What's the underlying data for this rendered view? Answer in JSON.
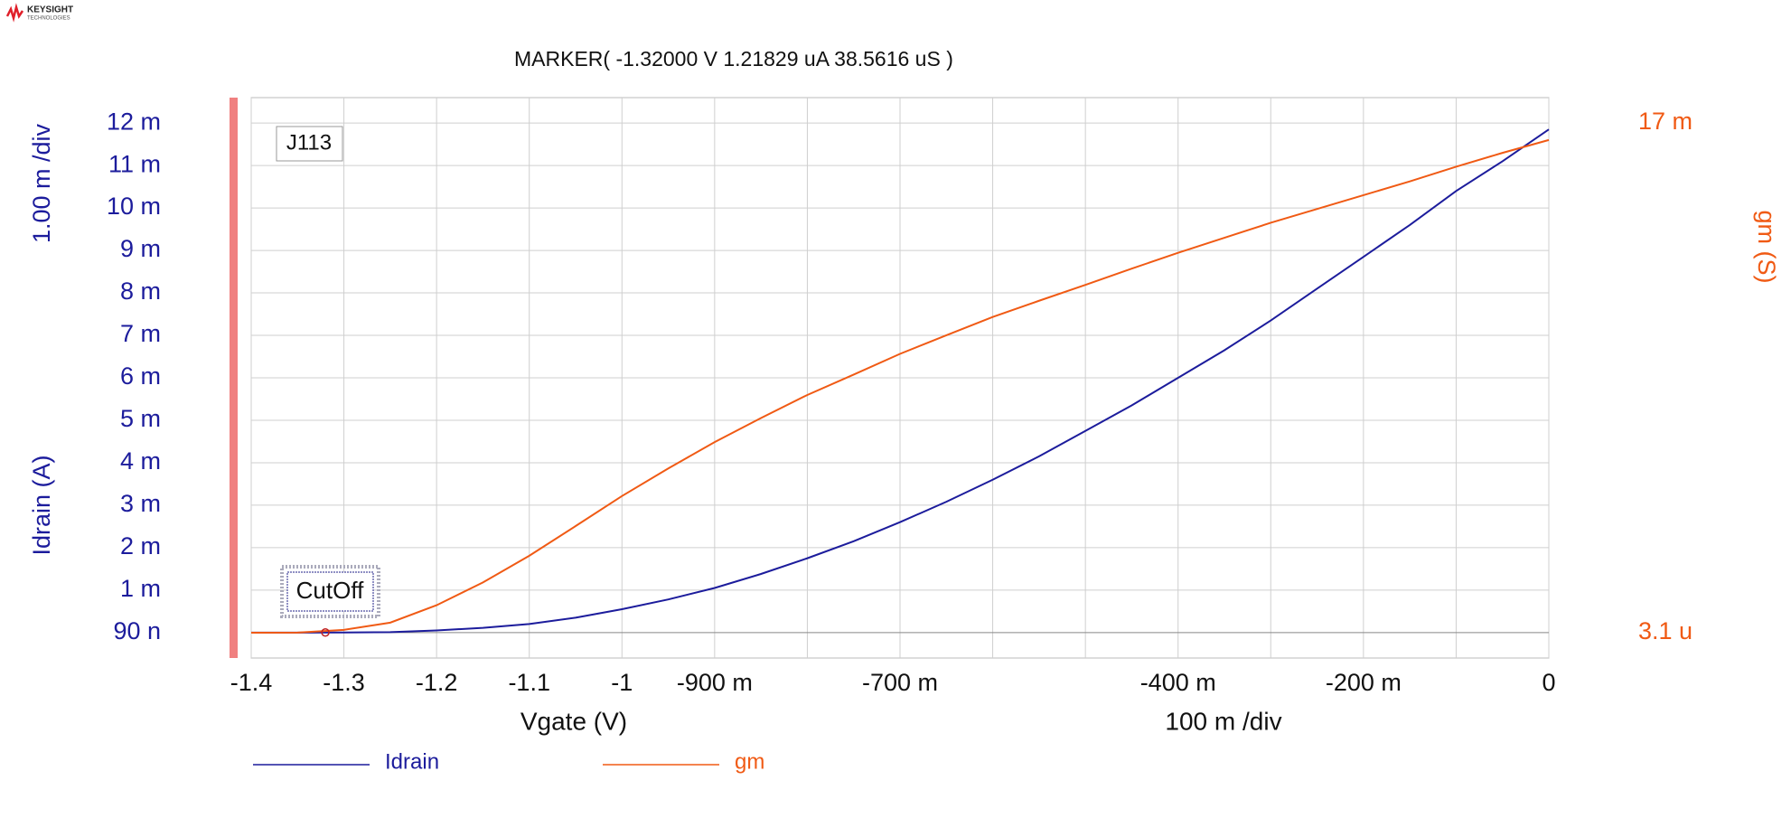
{
  "logo": {
    "brand": "KEYSIGHT",
    "sub": "TECHNOLOGIES"
  },
  "chart_data": {
    "type": "line",
    "title": "MARKER(  -1.32000 V   1.21829 uA  38.5616 uS )",
    "marker": {
      "x": -1.32,
      "y": 1.21829e-06
    },
    "annotations": [
      "J113",
      "CutOff"
    ],
    "x_label": "Vgate (V)",
    "y_label": "Idrain (A)",
    "y2_label": "gm (S)",
    "x_div": {
      "value": 0.1,
      "label": "100 m /div"
    },
    "y_div": {
      "value": 0.001,
      "label": "1.00 m /div"
    },
    "xlim": [
      -1.4,
      0
    ],
    "xticks": [
      -1.4,
      -1.3,
      -1.2,
      -1.1,
      -1,
      {
        "value": -0.9,
        "label": "-900 m"
      },
      {
        "value": -0.7,
        "label": "-700 m"
      },
      {
        "value": -0.4,
        "label": "-400 m"
      },
      {
        "value": -0.2,
        "label": "-200 m"
      },
      0
    ],
    "ylim": [
      -0.0006,
      0.0126
    ],
    "yticks": [
      {
        "value": 0.012,
        "label": "12 m"
      },
      {
        "value": 0.011,
        "label": "11 m"
      },
      {
        "value": 0.01,
        "label": "10 m"
      },
      {
        "value": 0.009,
        "label": "9 m"
      },
      {
        "value": 0.008,
        "label": "8 m"
      },
      {
        "value": 0.007,
        "label": "7 m"
      },
      {
        "value": 0.006,
        "label": "6 m"
      },
      {
        "value": 0.005,
        "label": "5 m"
      },
      {
        "value": 0.004,
        "label": "4 m"
      },
      {
        "value": 0.003,
        "label": "3 m"
      },
      {
        "value": 0.002,
        "label": "2 m"
      },
      {
        "value": 0.001,
        "label": "1 m"
      },
      {
        "value": 9e-08,
        "label": "90 n"
      }
    ],
    "y2lim": [
      -0.000839,
      0.017842
    ],
    "y2ticks": [
      {
        "value": 0.017,
        "label": "17 m"
      },
      {
        "value": 3.1e-06,
        "label": "3.1 u"
      }
    ],
    "grid": true,
    "x": [
      -1.4,
      -1.35,
      -1.3,
      -1.25,
      -1.2,
      -1.15,
      -1.1,
      -1.05,
      -1.0,
      -0.95,
      -0.9,
      -0.85,
      -0.8,
      -0.75,
      -0.7,
      -0.65,
      -0.6,
      -0.55,
      -0.5,
      -0.45,
      -0.4,
      -0.35,
      -0.3,
      -0.25,
      -0.2,
      -0.15,
      -0.1,
      -0.05,
      0
    ],
    "series": [
      {
        "name": "Idrain",
        "color": "#1c1c9c",
        "axis": "y",
        "values": [
          0,
          0,
          2e-06,
          1e-05,
          5e-05,
          0.00011,
          0.0002,
          0.00035,
          0.00055,
          0.00078,
          0.00105,
          0.00138,
          0.00175,
          0.00215,
          0.0026,
          0.00308,
          0.0036,
          0.00415,
          0.00475,
          0.00535,
          0.006,
          0.00665,
          0.00735,
          0.0081,
          0.00885,
          0.0096,
          0.0104,
          0.0111,
          0.01185
        ]
      },
      {
        "name": "gm",
        "color": "#f05a14",
        "axis": "y2",
        "values": [
          3.1e-06,
          8e-06,
          0.0001,
          0.00034,
          0.00092,
          0.00168,
          0.00257,
          0.00356,
          0.00456,
          0.00548,
          0.00636,
          0.00716,
          0.00793,
          0.00861,
          0.0093,
          0.00992,
          0.01053,
          0.01107,
          0.0116,
          0.01214,
          0.01267,
          0.01317,
          0.01367,
          0.01413,
          0.01459,
          0.01505,
          0.01554,
          0.016,
          0.01643
        ]
      }
    ]
  }
}
